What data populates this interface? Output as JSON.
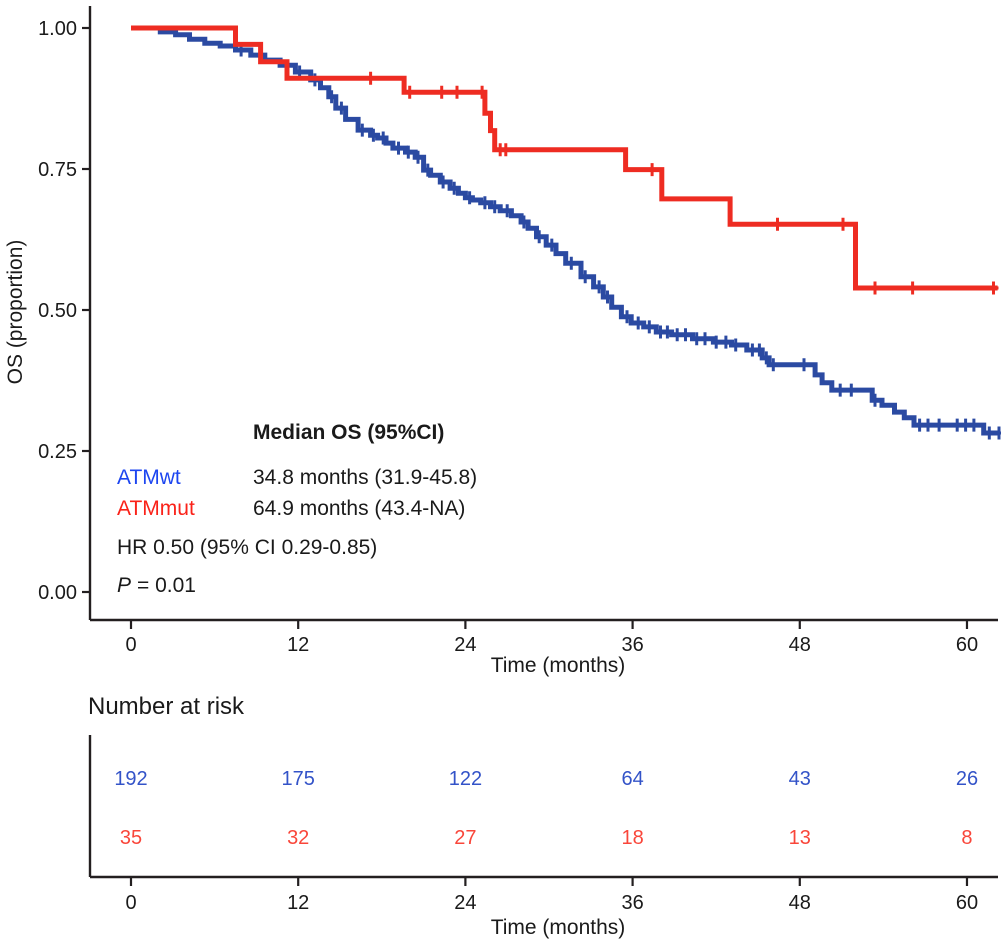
{
  "chart_data": {
    "type": "line",
    "subtype": "kaplan-meier-step",
    "title": "",
    "xlabel": "Time (months)",
    "ylabel": "OS (proportion)",
    "xlim": [
      0,
      62.5
    ],
    "ylim": [
      0,
      1
    ],
    "grid": false,
    "xticks": [
      0,
      12,
      24,
      36,
      48,
      60
    ],
    "yticks": [
      {
        "v": 0.0,
        "label": "0.00"
      },
      {
        "v": 0.25,
        "label": "0.25"
      },
      {
        "v": 0.5,
        "label": "0.50"
      },
      {
        "v": 0.75,
        "label": "0.75"
      },
      {
        "v": 1.0,
        "label": "1.00"
      }
    ],
    "axis_color": "#231f20",
    "series": [
      {
        "name": "ATMwt",
        "color": "#2b4aa2",
        "steps": [
          [
            0,
            1.0
          ],
          [
            2.1,
            0.993
          ],
          [
            3.2,
            0.988
          ],
          [
            4.2,
            0.98
          ],
          [
            5.3,
            0.973
          ],
          [
            6.4,
            0.968
          ],
          [
            7.5,
            0.961
          ],
          [
            8.6,
            0.952
          ],
          [
            9.6,
            0.943
          ],
          [
            10.7,
            0.934
          ],
          [
            11.8,
            0.922
          ],
          [
            12.9,
            0.908
          ],
          [
            13.6,
            0.894
          ],
          [
            14.2,
            0.878
          ],
          [
            14.7,
            0.858
          ],
          [
            15.4,
            0.838
          ],
          [
            16.3,
            0.819
          ],
          [
            17.2,
            0.81
          ],
          [
            17.7,
            0.805
          ],
          [
            18.3,
            0.796
          ],
          [
            18.8,
            0.787
          ],
          [
            19.7,
            0.78
          ],
          [
            20.4,
            0.771
          ],
          [
            21.0,
            0.748
          ],
          [
            21.5,
            0.739
          ],
          [
            22.2,
            0.727
          ],
          [
            22.9,
            0.716
          ],
          [
            23.5,
            0.707
          ],
          [
            24.0,
            0.699
          ],
          [
            24.5,
            0.695
          ],
          [
            25.1,
            0.69
          ],
          [
            25.8,
            0.683
          ],
          [
            26.5,
            0.676
          ],
          [
            27.3,
            0.667
          ],
          [
            28.0,
            0.656
          ],
          [
            28.5,
            0.645
          ],
          [
            29.1,
            0.63
          ],
          [
            29.8,
            0.615
          ],
          [
            30.5,
            0.6
          ],
          [
            31.2,
            0.583
          ],
          [
            32.3,
            0.559
          ],
          [
            33.2,
            0.541
          ],
          [
            33.9,
            0.523
          ],
          [
            34.5,
            0.505
          ],
          [
            35.2,
            0.488
          ],
          [
            35.9,
            0.477
          ],
          [
            36.8,
            0.47
          ],
          [
            37.7,
            0.461
          ],
          [
            38.8,
            0.456
          ],
          [
            40.3,
            0.449
          ],
          [
            41.8,
            0.443
          ],
          [
            43.1,
            0.438
          ],
          [
            44.2,
            0.429
          ],
          [
            45.3,
            0.415
          ],
          [
            45.8,
            0.403
          ],
          [
            49.1,
            0.385
          ],
          [
            49.6,
            0.371
          ],
          [
            50.3,
            0.358
          ],
          [
            53.2,
            0.34
          ],
          [
            53.9,
            0.331
          ],
          [
            54.8,
            0.319
          ],
          [
            55.5,
            0.309
          ],
          [
            56.2,
            0.296
          ],
          [
            61.2,
            0.282
          ],
          [
            62.4,
            0.282
          ]
        ],
        "censor_times": [
          7.9,
          12.1,
          13.2,
          14.4,
          15.1,
          16.6,
          17.4,
          18.1,
          19.2,
          19.9,
          20.6,
          21.3,
          22.4,
          23.2,
          24.3,
          25.4,
          26.1,
          27.0,
          28.2,
          29.3,
          30.2,
          31.6,
          32.6,
          33.6,
          34.2,
          35.6,
          36.4,
          37.2,
          38.0,
          38.5,
          39.2,
          39.8,
          40.6,
          41.2,
          42.0,
          42.7,
          43.4,
          44.6,
          45.1,
          45.6,
          46.1,
          48.3,
          50.9,
          51.7,
          53.4,
          56.6,
          57.2,
          58.0,
          59.3,
          59.9,
          60.5,
          61.6,
          62.3
        ]
      },
      {
        "name": "ATMmut",
        "color": "#ee2c22",
        "steps": [
          [
            0,
            1.0
          ],
          [
            7.5,
            0.971
          ],
          [
            9.3,
            0.94
          ],
          [
            11.2,
            0.911
          ],
          [
            19.6,
            0.886
          ],
          [
            25.4,
            0.849
          ],
          [
            25.8,
            0.818
          ],
          [
            26.1,
            0.784
          ],
          [
            35.5,
            0.749
          ],
          [
            38.1,
            0.697
          ],
          [
            43.0,
            0.652
          ],
          [
            52.0,
            0.539
          ],
          [
            62.2,
            0.539
          ]
        ],
        "censor_times": [
          17.2,
          20.0,
          22.3,
          23.4,
          25.2,
          26.5,
          26.9,
          37.4,
          46.4,
          51.1,
          53.4,
          56.1,
          61.9
        ]
      }
    ],
    "annotation": {
      "heading": "Median OS (95%CI)",
      "rows": [
        {
          "label": "ATMwt",
          "value": "34.8 months (31.9-45.8)",
          "color": "#1d46f0"
        },
        {
          "label": "ATMmut",
          "value": "64.9 months (43.4-NA)",
          "color": "#fa2219"
        }
      ],
      "hr_text": "HR 0.50 (95% CI 0.29-0.85)",
      "p_label": "P",
      "p_value": "= 0.01"
    },
    "risk_table": {
      "title": "Number at risk",
      "xlabel": "Time (months)",
      "times": [
        0,
        12,
        24,
        36,
        48,
        60
      ],
      "rows": [
        {
          "name": "ATMwt",
          "color": "#3353c8",
          "values": [
            192,
            175,
            122,
            64,
            43,
            26
          ]
        },
        {
          "name": "ATMmut",
          "color": "#f9463a",
          "values": [
            35,
            32,
            27,
            18,
            13,
            8
          ]
        }
      ]
    }
  }
}
